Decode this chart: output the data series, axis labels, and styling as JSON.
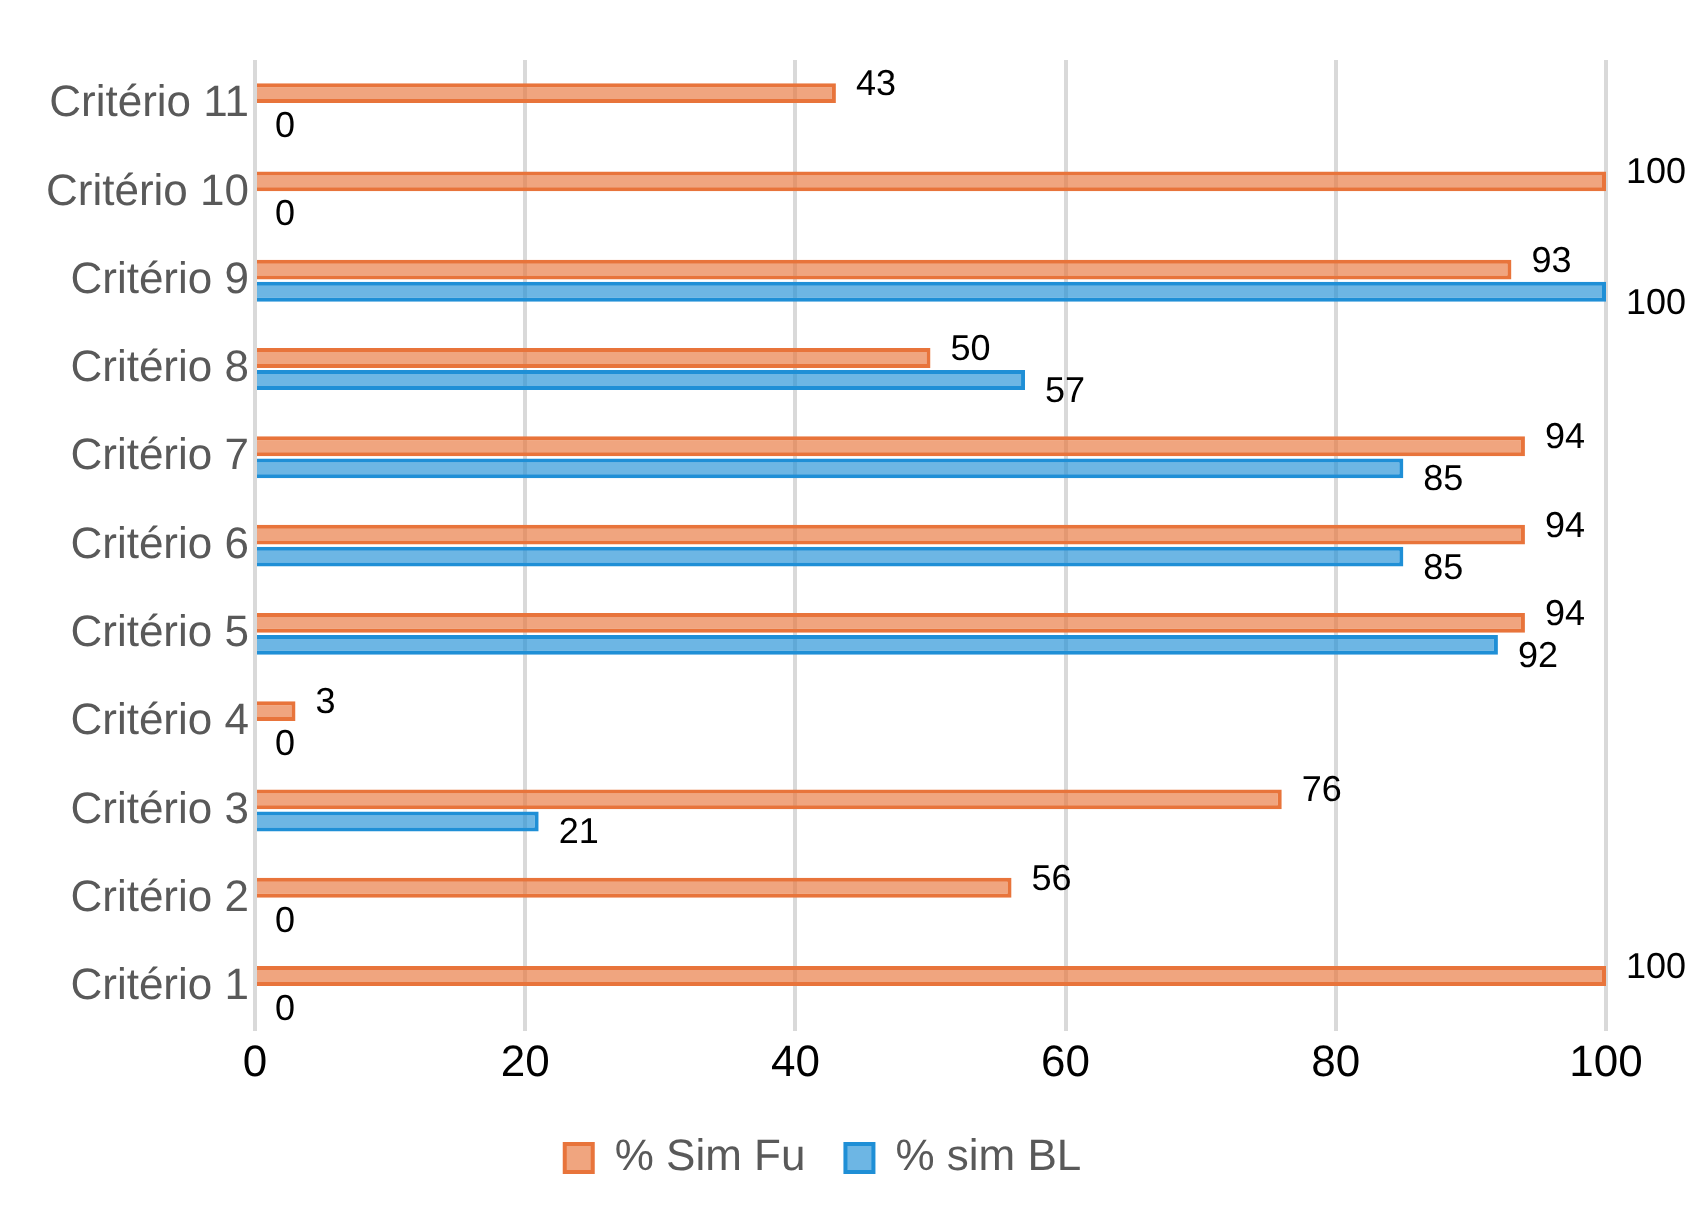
{
  "chart_data": {
    "type": "bar",
    "orientation": "horizontal",
    "categories": [
      "Critério 11",
      "Critério 10",
      "Critério 9",
      "Critério 8",
      "Critério 7",
      "Critério 6",
      "Critério 5",
      "Critério 4",
      "Critério 3",
      "Critério 2",
      "Critério 1"
    ],
    "series": [
      {
        "name": "% Sim Fu",
        "color": "#e8743b",
        "values": [
          43,
          100,
          93,
          50,
          94,
          94,
          94,
          3,
          76,
          56,
          100
        ]
      },
      {
        "name": "% sim BL",
        "color": "#1f8fd6",
        "values": [
          0,
          0,
          100,
          57,
          85,
          85,
          92,
          0,
          21,
          0,
          0
        ]
      }
    ],
    "xlim": [
      0,
      100
    ],
    "xticks": [
      0,
      20,
      40,
      60,
      80,
      100
    ],
    "grid": "x",
    "legend": "bottom",
    "data_labels": true
  }
}
